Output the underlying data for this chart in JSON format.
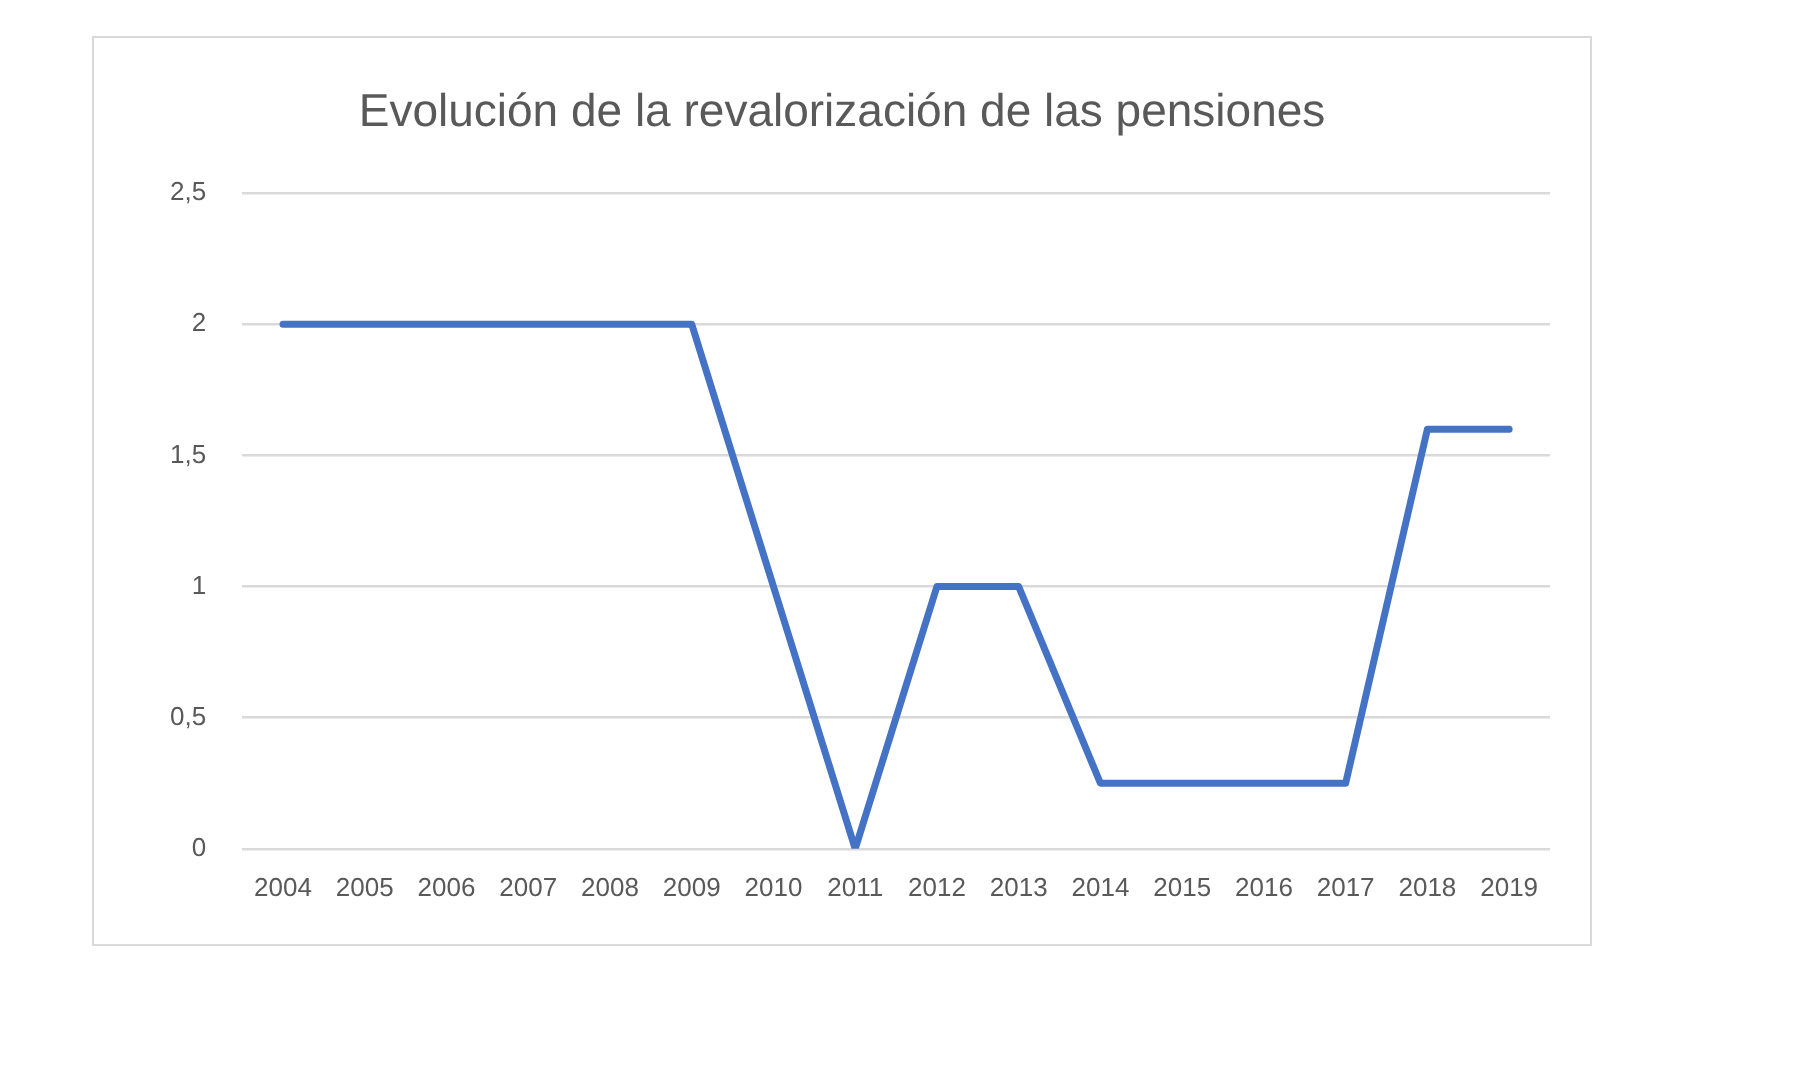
{
  "chart_data": {
    "type": "line",
    "title": "Evolución de la revalorización de las pensiones",
    "categories": [
      "2004",
      "2005",
      "2006",
      "2007",
      "2008",
      "2009",
      "2010",
      "2011",
      "2012",
      "2013",
      "2014",
      "2015",
      "2016",
      "2017",
      "2018",
      "2019"
    ],
    "series": [
      {
        "color": "#4472c4",
        "values": [
          2,
          2,
          2,
          2,
          2,
          2,
          1,
          0,
          1,
          1,
          0.25,
          0.25,
          0.25,
          0.25,
          1.6,
          1.6
        ]
      }
    ],
    "ylim": [
      0,
      2.5
    ],
    "yticks": [
      0,
      {
        "value": 0.5,
        "label": "0,5"
      },
      1,
      {
        "value": 1.5,
        "label": "1,5"
      },
      2,
      {
        "value": 2.5,
        "label": "2,5"
      }
    ],
    "grid": "y",
    "legend": false,
    "marker": "none",
    "line_style": "solid"
  }
}
